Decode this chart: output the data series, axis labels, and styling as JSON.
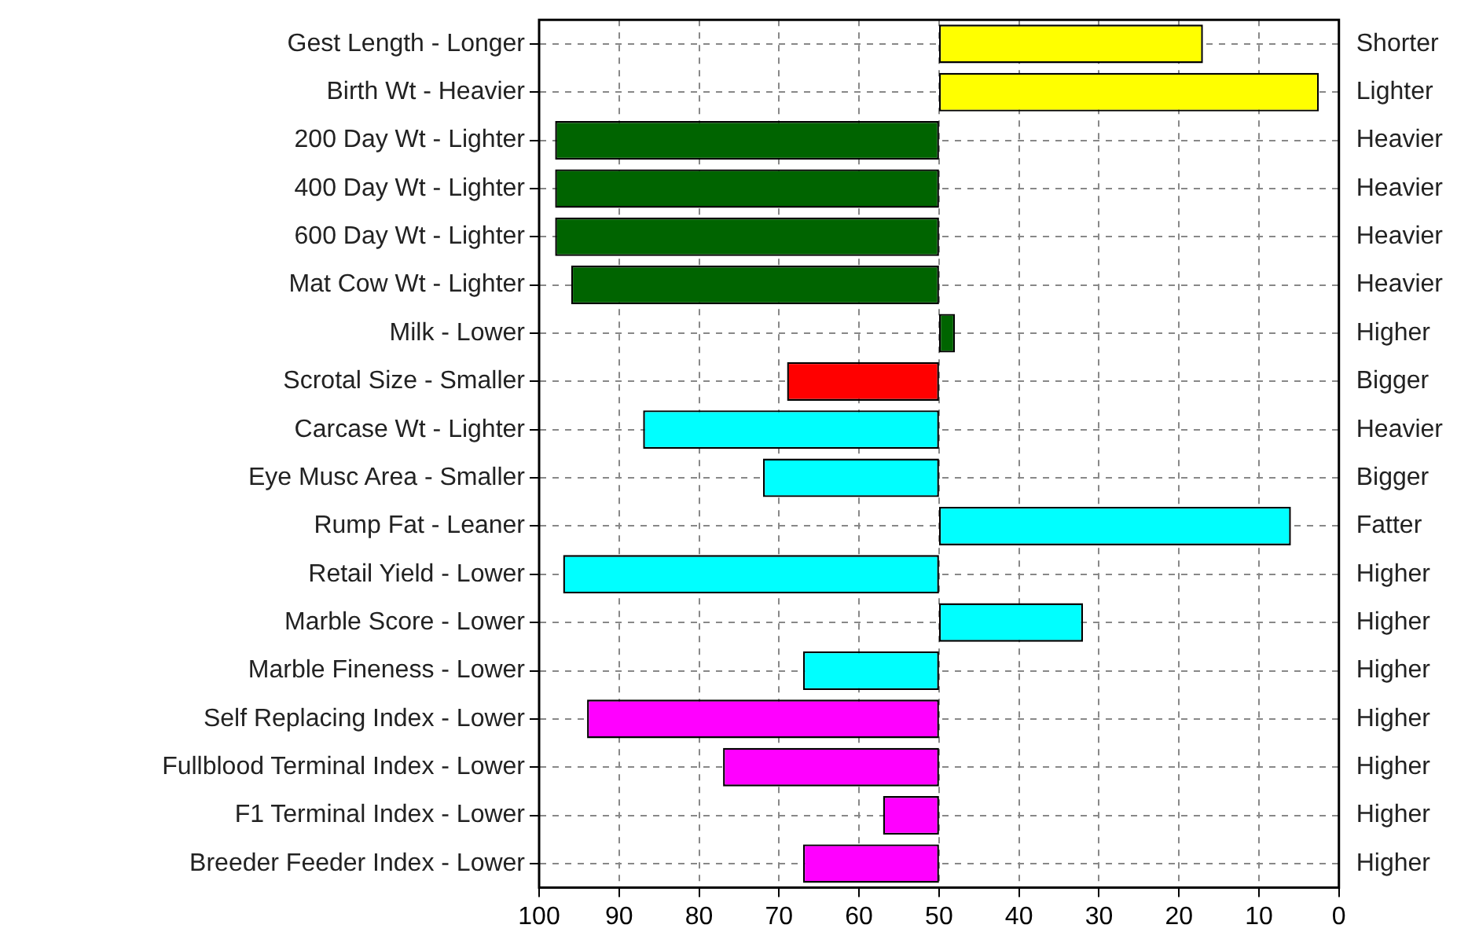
{
  "chart_data": {
    "type": "bar",
    "orientation": "horizontal",
    "categories": [
      "Gest Length - Longer",
      "Birth Wt - Heavier",
      "200 Day Wt - Lighter",
      "400 Day Wt - Lighter",
      "600 Day Wt - Lighter",
      "Mat Cow Wt - Lighter",
      "Milk - Lower",
      "Scrotal Size - Smaller",
      "Carcase Wt - Lighter",
      "Eye Musc Area - Smaller",
      "Rump Fat - Leaner",
      "Retail Yield - Lower",
      "Marble Score - Lower",
      "Marble Fineness - Lower",
      "Self Replacing Index - Lower",
      "Fullblood Terminal Index - Lower",
      "F1 Terminal Index - Lower",
      "Breeder Feeder Index - Lower"
    ],
    "y2_categories": [
      "Shorter",
      "Lighter",
      "Heavier",
      "Heavier",
      "Heavier",
      "Heavier",
      "Higher",
      "Bigger",
      "Heavier",
      "Bigger",
      "Fatter",
      "Higher",
      "Higher",
      "Higher",
      "Higher",
      "Higher",
      "Higher",
      "Higher"
    ],
    "base": [
      50,
      50,
      50,
      50,
      50,
      50,
      50,
      50,
      50,
      50,
      50,
      50,
      50,
      50,
      50,
      50,
      50,
      50
    ],
    "values": [
      -33,
      -47.5,
      48,
      48,
      48,
      46,
      -2,
      19,
      37,
      22,
      -44,
      47,
      -18,
      17,
      44,
      27,
      7,
      17
    ],
    "colors": [
      "#ffff00",
      "#ffff00",
      "#006400",
      "#006400",
      "#006400",
      "#006400",
      "#006400",
      "#ff0000",
      "#00ffff",
      "#00ffff",
      "#00ffff",
      "#00ffff",
      "#00ffff",
      "#00ffff",
      "#ff00ff",
      "#ff00ff",
      "#ff00ff",
      "#ff00ff"
    ],
    "xlim": [
      100,
      0
    ],
    "xticks": [
      100,
      90,
      80,
      70,
      60,
      50,
      40,
      30,
      20,
      10,
      0
    ],
    "grid": true,
    "legend": false
  }
}
